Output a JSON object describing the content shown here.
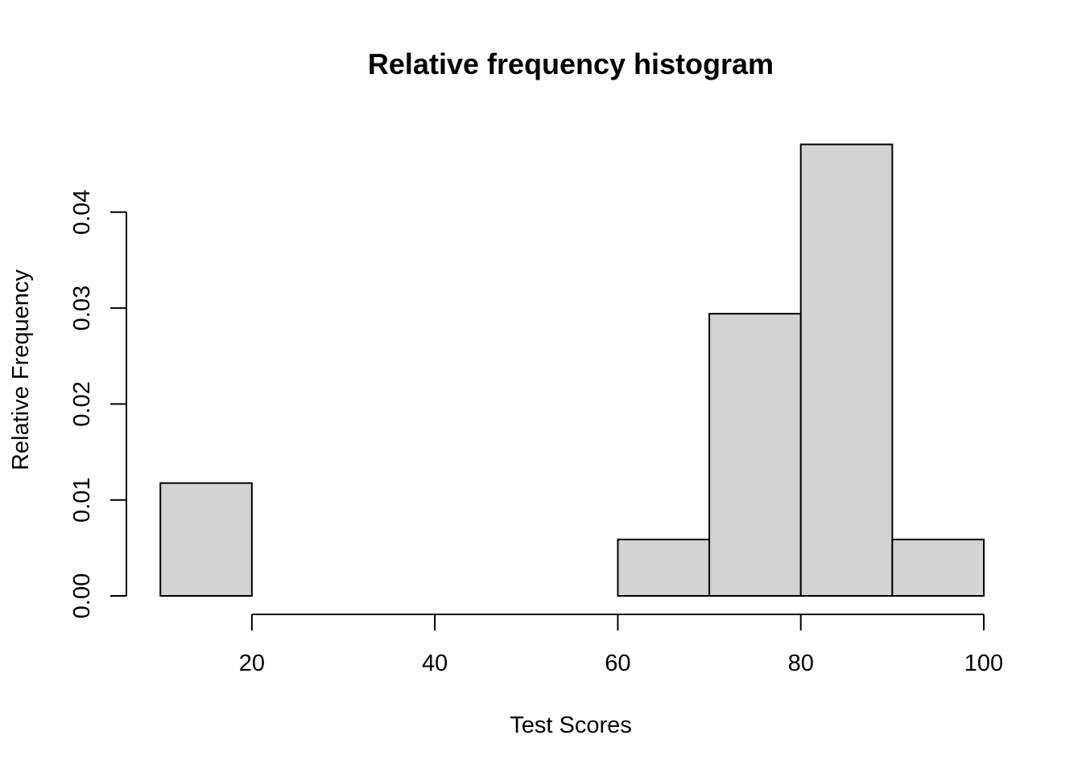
{
  "chart_data": {
    "type": "bar",
    "title": "Relative frequency histogram",
    "xlabel": "Test Scores",
    "ylabel": "Relative Frequency",
    "bins": [
      {
        "start": 10,
        "end": 20,
        "value": 0.01176
      },
      {
        "start": 20,
        "end": 30,
        "value": 0
      },
      {
        "start": 30,
        "end": 40,
        "value": 0
      },
      {
        "start": 40,
        "end": 50,
        "value": 0
      },
      {
        "start": 50,
        "end": 60,
        "value": 0
      },
      {
        "start": 60,
        "end": 70,
        "value": 0.00588
      },
      {
        "start": 70,
        "end": 80,
        "value": 0.02941
      },
      {
        "start": 80,
        "end": 90,
        "value": 0.04706
      },
      {
        "start": 90,
        "end": 100,
        "value": 0.00588
      }
    ],
    "xticks": [
      20,
      40,
      60,
      80,
      100
    ],
    "xtick_labels": [
      "20",
      "40",
      "60",
      "80",
      "100"
    ],
    "yticks": [
      0,
      0.01,
      0.02,
      0.03,
      0.04
    ],
    "ytick_labels": [
      "0.00",
      "0.01",
      "0.02",
      "0.03",
      "0.04"
    ],
    "xlim": [
      10,
      100
    ],
    "ylim": [
      0,
      0.04706
    ],
    "grid": false,
    "bar_color": "#d3d3d3"
  }
}
